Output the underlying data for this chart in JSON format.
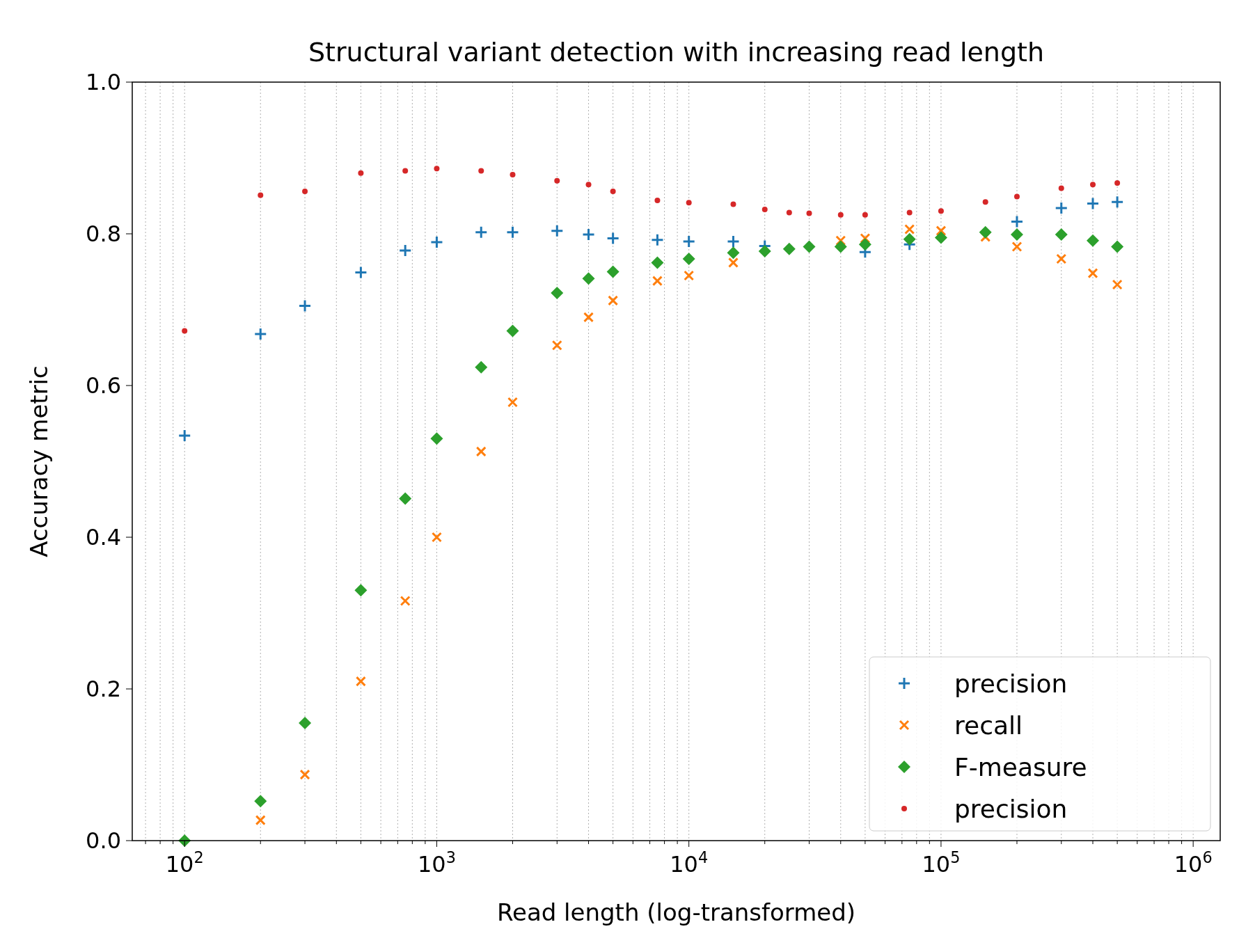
{
  "chart_data": {
    "type": "scatter",
    "title": "Structural variant detection with increasing read length",
    "xlabel": "Read length (log-transformed)",
    "ylabel": "Accuracy metric",
    "x": [
      100,
      200,
      300,
      500,
      750,
      1000,
      1500,
      2000,
      3000,
      4000,
      5000,
      7500,
      10000,
      15000,
      20000,
      25000,
      30000,
      40000,
      50000,
      75000,
      100000,
      150000,
      200000,
      300000,
      400000,
      500000
    ],
    "series": [
      {
        "name": "precision",
        "color": "#1f77b4",
        "marker": "cross",
        "values": [
          0.534,
          0.668,
          0.705,
          0.749,
          0.778,
          0.789,
          0.802,
          0.802,
          0.804,
          0.799,
          0.794,
          0.792,
          0.79,
          0.79,
          0.784,
          null,
          null,
          null,
          0.776,
          0.786,
          null,
          null,
          0.816,
          0.834,
          0.84,
          0.842
        ]
      },
      {
        "name": "recall",
        "color": "#ff7f0e",
        "marker": "x",
        "values": [
          null,
          0.027,
          0.087,
          0.21,
          0.316,
          0.4,
          0.513,
          0.578,
          0.653,
          0.69,
          0.712,
          0.738,
          0.745,
          0.762,
          null,
          null,
          null,
          0.791,
          0.794,
          0.806,
          0.804,
          0.796,
          0.783,
          0.767,
          0.748,
          0.733
        ]
      },
      {
        "name": "F-measure",
        "color": "#2ca02c",
        "marker": "diamond",
        "values": [
          0.0,
          0.052,
          0.155,
          0.33,
          0.451,
          0.53,
          0.624,
          0.672,
          0.722,
          0.741,
          0.75,
          0.762,
          0.767,
          0.775,
          0.777,
          0.78,
          0.783,
          0.783,
          0.786,
          0.793,
          0.795,
          0.802,
          0.799,
          0.799,
          0.791,
          0.783
        ]
      },
      {
        "name": "precision",
        "color": "#d62728",
        "marker": "circle",
        "values": [
          0.672,
          0.851,
          0.856,
          0.88,
          0.883,
          0.886,
          0.883,
          0.878,
          0.87,
          0.865,
          0.856,
          0.844,
          0.841,
          0.839,
          0.832,
          0.828,
          0.827,
          0.825,
          0.825,
          0.828,
          0.83,
          0.842,
          0.849,
          0.86,
          0.865,
          0.867
        ]
      }
    ],
    "log": "x",
    "xlim": [
      62,
      1280000
    ],
    "ylim": [
      0,
      1
    ],
    "xticks": [
      {
        "value": 70,
        "label": null
      },
      {
        "value": 80,
        "label": null
      },
      {
        "value": 90,
        "label": null
      },
      {
        "value": 100,
        "label": "10$^{2}$"
      },
      {
        "value": 200,
        "label": null
      },
      {
        "value": 300,
        "label": null
      },
      {
        "value": 400,
        "label": null
      },
      {
        "value": 500,
        "label": null
      },
      {
        "value": 600,
        "label": null
      },
      {
        "value": 700,
        "label": null
      },
      {
        "value": 800,
        "label": null
      },
      {
        "value": 900,
        "label": null
      },
      {
        "value": 1000,
        "label": "10$^{3}$"
      },
      {
        "value": 2000,
        "label": null
      },
      {
        "value": 3000,
        "label": null
      },
      {
        "value": 4000,
        "label": null
      },
      {
        "value": 5000,
        "label": null
      },
      {
        "value": 6000,
        "label": null
      },
      {
        "value": 7000,
        "label": null
      },
      {
        "value": 8000,
        "label": null
      },
      {
        "value": 9000,
        "label": null
      },
      {
        "value": 10000,
        "label": "10$^{4}$"
      },
      {
        "value": 20000,
        "label": null
      },
      {
        "value": 30000,
        "label": null
      },
      {
        "value": 40000,
        "label": null
      },
      {
        "value": 50000,
        "label": null
      },
      {
        "value": 60000,
        "label": null
      },
      {
        "value": 70000,
        "label": null
      },
      {
        "value": 80000,
        "label": null
      },
      {
        "value": 90000,
        "label": null
      },
      {
        "value": 100000,
        "label": "10$^{5}$"
      },
      {
        "value": 200000,
        "label": null
      },
      {
        "value": 300000,
        "label": null
      },
      {
        "value": 400000,
        "label": null
      },
      {
        "value": 500000,
        "label": null
      },
      {
        "value": 600000,
        "label": null
      },
      {
        "value": 700000,
        "label": null
      },
      {
        "value": 800000,
        "label": null
      },
      {
        "value": 900000,
        "label": null
      },
      {
        "value": 1000000,
        "label": "10$^{6}$"
      }
    ],
    "yticks": [
      {
        "value": 0,
        "label": "0.0"
      },
      0.2,
      0.4,
      0.6,
      0.8,
      {
        "value": 1,
        "label": "1.0"
      }
    ],
    "grid": "x",
    "legend": "bottom right"
  }
}
